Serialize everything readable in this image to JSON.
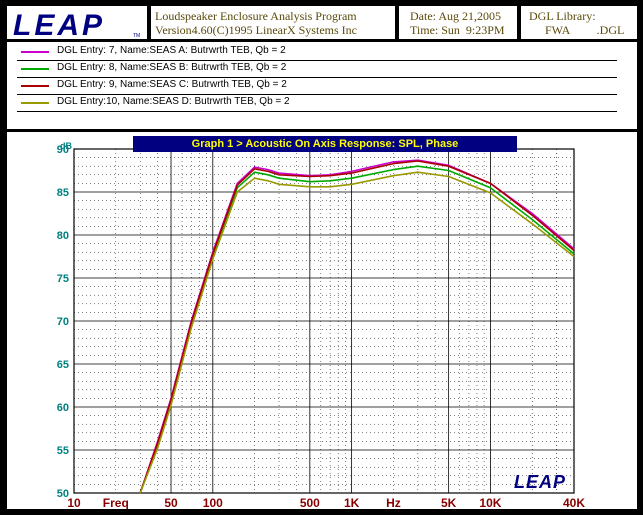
{
  "header": {
    "logo_text": "LEAP",
    "logo_tm": "TM",
    "program_line1": "Loudspeaker Enclosure Analysis Program",
    "program_line2": "Version4.60(C)1995 LinearX Systems Inc",
    "date_line": "Date: Aug 21,2005",
    "time_line": "Time: Sun  9:23PM",
    "library_line1": "DGL Library:",
    "library_line2": "FWA         .DGL"
  },
  "legend": [
    {
      "label": "DGL Entry: 7, Name:SEAS A: Butrwrth TEB, Qb = 2",
      "color": "#cc00cc"
    },
    {
      "label": "DGL Entry: 8, Name:SEAS B: Butrwrth TEB, Qb = 2",
      "color": "#00aa00"
    },
    {
      "label": "DGL Entry: 9, Name:SEAS C: Butrwrth TEB, Qb = 2",
      "color": "#aa0000"
    },
    {
      "label": "DGL Entry:10, Name:SEAS D: Butrwrth TEB, Qb = 2",
      "color": "#999900"
    }
  ],
  "watermark": "LEAP",
  "chart_data": {
    "type": "line",
    "title": "Graph 1 > Acoustic On Axis Response: SPL, Phase",
    "ylabel": "dB",
    "xlabel": "Freq",
    "x_unit_label": "Hz",
    "xscale": "log",
    "xlim": [
      10,
      40000
    ],
    "ylim": [
      50,
      90
    ],
    "y_ticks": [
      90,
      85,
      80,
      75,
      70,
      65,
      60,
      55,
      50
    ],
    "x_tick_labels": [
      {
        "label": "10",
        "x": 10
      },
      {
        "label": "Freq",
        "x": 20
      },
      {
        "label": "50",
        "x": 50
      },
      {
        "label": "100",
        "x": 100
      },
      {
        "label": "500",
        "x": 500
      },
      {
        "label": "1K",
        "x": 1000
      },
      {
        "label": "Hz",
        "x": 2000
      },
      {
        "label": "5K",
        "x": 5000
      },
      {
        "label": "10K",
        "x": 10000
      },
      {
        "label": "40K",
        "x": 40000
      }
    ],
    "grid": true,
    "series": [
      {
        "name": "DGL Entry: 7, Name:SEAS A: Butrwrth TEB, Qb = 2",
        "color": "#cc00cc",
        "x": [
          30,
          40,
          50,
          70,
          100,
          150,
          200,
          250,
          300,
          500,
          700,
          1000,
          2000,
          3000,
          5000,
          10000,
          20000,
          40000
        ],
        "y": [
          50,
          56,
          61,
          70,
          78,
          86,
          87.9,
          87.6,
          87.2,
          86.9,
          87.0,
          87.4,
          88.5,
          88.7,
          88.1,
          86.0,
          82.5,
          78.4
        ]
      },
      {
        "name": "DGL Entry: 8, Name:SEAS B: Butrwrth TEB, Qb = 2",
        "color": "#00aa00",
        "x": [
          30,
          40,
          50,
          70,
          100,
          150,
          200,
          250,
          300,
          500,
          700,
          1000,
          2000,
          3000,
          5000,
          10000,
          20000,
          40000
        ],
        "y": [
          50,
          55.5,
          60.5,
          69.5,
          77.5,
          85.5,
          87.3,
          87.0,
          86.6,
          86.2,
          86.3,
          86.6,
          87.6,
          88.0,
          87.5,
          85.5,
          81.8,
          77.8
        ]
      },
      {
        "name": "DGL Entry: 9, Name:SEAS C: Butrwrth TEB, Qb = 2",
        "color": "#aa0000",
        "x": [
          30,
          40,
          50,
          70,
          100,
          150,
          200,
          250,
          300,
          500,
          700,
          1000,
          2000,
          3000,
          5000,
          10000,
          20000,
          40000
        ],
        "y": [
          50,
          55.8,
          60.8,
          69.8,
          77.8,
          85.8,
          87.7,
          87.4,
          87.0,
          86.8,
          86.9,
          87.2,
          88.3,
          88.6,
          88.0,
          86.0,
          82.3,
          78.2
        ]
      },
      {
        "name": "DGL Entry:10, Name:SEAS D: Butrwrth TEB, Qb = 2",
        "color": "#999900",
        "x": [
          30,
          40,
          50,
          70,
          100,
          150,
          200,
          250,
          300,
          500,
          700,
          1000,
          2000,
          3000,
          5000,
          10000,
          20000,
          40000
        ],
        "y": [
          50,
          55.2,
          60.2,
          69.2,
          77.2,
          85.0,
          86.6,
          86.3,
          85.9,
          85.6,
          85.6,
          85.9,
          86.9,
          87.3,
          86.8,
          84.9,
          81.3,
          77.5
        ]
      }
    ]
  }
}
